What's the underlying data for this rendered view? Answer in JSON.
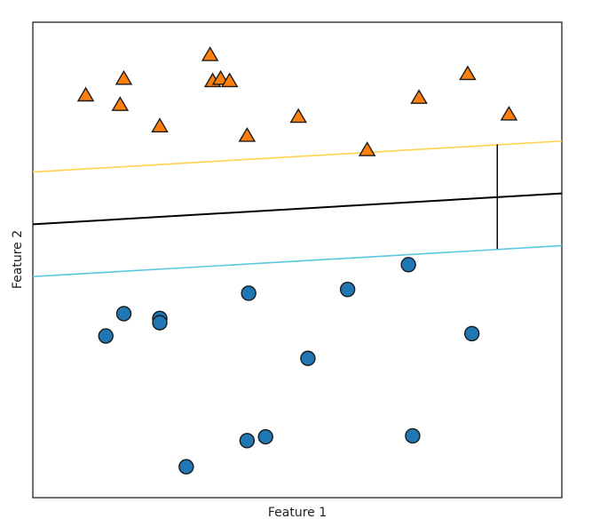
{
  "chart_data": {
    "type": "scatter",
    "title": "",
    "xlabel": "Feature 1",
    "ylabel": "Feature 2",
    "xlim": [
      0,
      10
    ],
    "ylim": [
      0,
      10
    ],
    "grid": false,
    "series": [
      {
        "marker": "triangle",
        "color": "#ff7f0e",
        "points": [
          [
            1.0,
            8.45
          ],
          [
            1.72,
            8.8
          ],
          [
            1.65,
            8.25
          ],
          [
            2.4,
            7.8
          ],
          [
            3.35,
            9.3
          ],
          [
            3.4,
            8.75
          ],
          [
            3.55,
            8.8
          ],
          [
            3.72,
            8.75
          ],
          [
            4.05,
            7.6
          ],
          [
            5.02,
            8.0
          ],
          [
            6.32,
            7.3
          ],
          [
            7.3,
            8.4
          ],
          [
            8.22,
            8.9
          ],
          [
            9.0,
            8.05
          ]
        ]
      },
      {
        "marker": "circle",
        "color": "#1f77b4",
        "points": [
          [
            1.38,
            3.4
          ],
          [
            1.72,
            3.87
          ],
          [
            2.4,
            3.77
          ],
          [
            2.4,
            3.68
          ],
          [
            2.9,
            0.65
          ],
          [
            4.08,
            4.3
          ],
          [
            4.05,
            1.2
          ],
          [
            4.4,
            1.28
          ],
          [
            5.2,
            2.93
          ],
          [
            5.95,
            4.38
          ],
          [
            7.1,
            4.9
          ],
          [
            7.18,
            1.3
          ],
          [
            8.3,
            3.45
          ]
        ]
      }
    ],
    "lines": [
      {
        "role": "upper-margin",
        "color": "#ffd24d",
        "x": [
          0,
          10
        ],
        "y": [
          6.85,
          7.5
        ]
      },
      {
        "role": "decision-boundary",
        "color": "#000000",
        "x": [
          0,
          10
        ],
        "y": [
          5.75,
          6.4
        ]
      },
      {
        "role": "lower-margin",
        "color": "#5bc8e0",
        "x": [
          0,
          10
        ],
        "y": [
          4.65,
          5.3
        ]
      },
      {
        "role": "margin-width-segment",
        "color": "#000000",
        "x": [
          8.78,
          8.78
        ],
        "y": [
          5.23,
          7.43
        ]
      }
    ]
  }
}
